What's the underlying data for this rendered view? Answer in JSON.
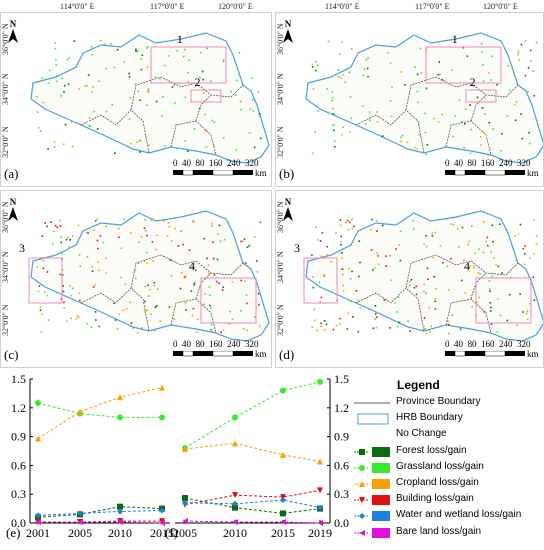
{
  "map": {
    "coords_top": [
      "114°0'0\" E",
      "117°0'0\" E",
      "120°0'0\" E"
    ],
    "coords_left": [
      "36°0'0\" N",
      "34°0'0\" N",
      "32°0'0\" N"
    ],
    "north": "N",
    "scale_labels": [
      "0",
      "40",
      "80",
      "160",
      "240",
      "320",
      "km"
    ],
    "panels": [
      {
        "label": "(a)",
        "boxes": [
          "1",
          "2"
        ]
      },
      {
        "label": "(b)",
        "boxes": [
          "1",
          "2"
        ]
      },
      {
        "label": "(c)",
        "boxes": [
          "3",
          "4"
        ]
      },
      {
        "label": "(d)",
        "boxes": [
          "3",
          "4"
        ]
      }
    ]
  },
  "colors": {
    "forest": "#0b6b12",
    "grassland": "#39e830",
    "cropland": "#f5a300",
    "building": "#e01010",
    "water": "#1e7fe0",
    "bare": "#e010e0",
    "hrb": "#4aa0d8",
    "province": "#555555",
    "box": "#ee88bb"
  },
  "chart_data": [
    {
      "type": "line",
      "panel": "(e)",
      "x": [
        2001,
        2005,
        2010,
        2015
      ],
      "xticks": [
        "2001",
        "2005",
        "2010",
        "2015"
      ],
      "yticks": [
        "0.0",
        "0.3",
        "0.6",
        "0.9",
        "1.2",
        "1.5"
      ],
      "ylim": [
        0,
        1.5
      ],
      "series": [
        {
          "name": "Forest loss/gain",
          "values": [
            0.06,
            0.09,
            0.17,
            0.15
          ]
        },
        {
          "name": "Grassland loss/gain",
          "values": [
            1.25,
            1.14,
            1.1,
            1.1
          ]
        },
        {
          "name": "Cropland loss/gain",
          "values": [
            0.88,
            1.16,
            1.31,
            1.41
          ]
        },
        {
          "name": "Building loss/gain",
          "values": [
            0.01,
            0.01,
            0.02,
            0.02
          ]
        },
        {
          "name": "Water and wetland loss/gain",
          "values": [
            0.08,
            0.1,
            0.12,
            0.13
          ]
        },
        {
          "name": "Bare land loss/gain",
          "values": [
            0.01,
            0.01,
            0.01,
            0.0
          ]
        }
      ]
    },
    {
      "type": "line",
      "panel": "(f)",
      "x": [
        2005,
        2010,
        2015,
        2019
      ],
      "xticks": [
        "2005",
        "2010",
        "2015",
        "2019"
      ],
      "yticks": [
        "0.0",
        "0.3",
        "0.6",
        "0.9",
        "1.2",
        "1.5"
      ],
      "ylim": [
        0,
        1.5
      ],
      "series": [
        {
          "name": "Forest loss/gain",
          "values": [
            0.26,
            0.16,
            0.1,
            0.15
          ]
        },
        {
          "name": "Grassland loss/gain",
          "values": [
            0.78,
            1.1,
            1.38,
            1.47
          ]
        },
        {
          "name": "Cropland loss/gain",
          "values": [
            0.77,
            0.83,
            0.71,
            0.64
          ]
        },
        {
          "name": "Building loss/gain",
          "values": [
            0.19,
            0.29,
            0.27,
            0.34
          ]
        },
        {
          "name": "Water and wetland loss/gain",
          "values": [
            0.21,
            0.2,
            0.24,
            0.16
          ]
        },
        {
          "name": "Bare land loss/gain",
          "values": [
            0.02,
            0.01,
            0.01,
            0.0
          ]
        }
      ]
    }
  ],
  "legend": {
    "title": "Legend",
    "items": [
      {
        "label": "Province Boundary",
        "kind": "line",
        "color": "#555555"
      },
      {
        "label": "HRB Boundary",
        "kind": "box",
        "color": "#4aa0d8"
      },
      {
        "label": "No Change",
        "kind": "none",
        "color": "#ffffff"
      },
      {
        "label": "Forest loss/gain",
        "kind": "series",
        "color": "#0b6b12",
        "marker": "square"
      },
      {
        "label": "Grassland loss/gain",
        "kind": "series",
        "color": "#39e830",
        "marker": "circle"
      },
      {
        "label": "Cropland loss/gain",
        "kind": "series",
        "color": "#f5a300",
        "marker": "triangle-up"
      },
      {
        "label": "Building loss/gain",
        "kind": "series",
        "color": "#e01010",
        "marker": "triangle-down"
      },
      {
        "label": "Water and wetland loss/gain",
        "kind": "series",
        "color": "#1e7fe0",
        "marker": "diamond"
      },
      {
        "label": "Bare land loss/gain",
        "kind": "series",
        "color": "#e010e0",
        "marker": "triangle-left"
      }
    ]
  }
}
